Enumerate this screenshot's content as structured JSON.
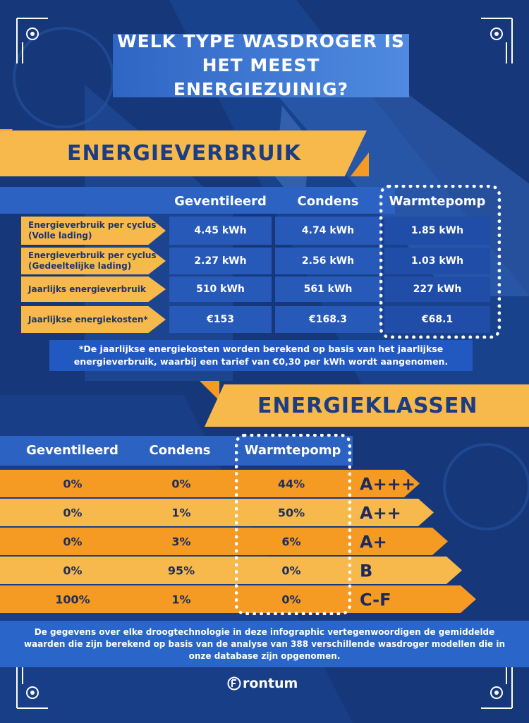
{
  "title": "Welk type wasdroger is het meest energiezuinig?",
  "section1": {
    "heading": "ENERGIEVERBRUIK",
    "columns": [
      "Geventileerd",
      "Condens",
      "Warmtepomp"
    ],
    "rows": [
      {
        "label1": "Energieverbruik per cyclus",
        "label2": "(Volle lading)",
        "values": [
          "4.45 kWh",
          "4.74 kWh",
          "1.85 kWh"
        ]
      },
      {
        "label1": "Energieverbruik per cyclus",
        "label2": "(Gedeeltelijke lading)",
        "values": [
          "2.27 kWh",
          "2.56 kWh",
          "1.03 kWh"
        ]
      },
      {
        "label1": "Jaarlijks energieverbruik",
        "label2": "",
        "values": [
          "510 kWh",
          "561 kWh",
          "227 kWh"
        ]
      },
      {
        "label1": "Jaarlijkse energiekosten*",
        "label2": "",
        "values": [
          "€153",
          "€168.3",
          "€68.1"
        ]
      }
    ],
    "note_line1": "*De jaarlijkse energiekosten worden berekend op basis van het jaarlijkse",
    "note_line2": "energieverbruik, waarbij een tarief van €0,30 per kWh wordt aangenomen."
  },
  "section2": {
    "heading": "ENERGIEKLASSEN",
    "columns": [
      "Geventileerd",
      "Condens",
      "Warmtepomp"
    ],
    "rows": [
      {
        "cls": "A+++",
        "values": [
          "0%",
          "0%",
          "44%"
        ]
      },
      {
        "cls": "A++",
        "values": [
          "0%",
          "1%",
          "50%"
        ]
      },
      {
        "cls": "A+",
        "values": [
          "0%",
          "3%",
          "6%"
        ]
      },
      {
        "cls": "B",
        "values": [
          "0%",
          "95%",
          "0%"
        ]
      },
      {
        "cls": "C-F",
        "values": [
          "100%",
          "1%",
          "0%"
        ]
      }
    ]
  },
  "footer": {
    "line1": "De gegevens over elke droogtechnologie in deze infographic vertegenwoordigen de gemiddelde",
    "line2": "waarden die zijn berekend op basis van de analyse van 388 verschillende wasdroger modellen die in",
    "line3": "onze database zijn opgenomen.",
    "brand": "rontum"
  },
  "chart_data": [
    {
      "type": "table",
      "title": "ENERGIEVERBRUIK",
      "categories": [
        "Energieverbruik per cyclus (Volle lading)",
        "Energieverbruik per cyclus (Gedeeltelijke lading)",
        "Jaarlijks energieverbruik",
        "Jaarlijkse energiekosten*"
      ],
      "series": [
        {
          "name": "Geventileerd",
          "values": [
            4.45,
            2.27,
            510,
            153
          ]
        },
        {
          "name": "Condens",
          "values": [
            4.74,
            2.56,
            561,
            168.3
          ]
        },
        {
          "name": "Warmtepomp",
          "values": [
            1.85,
            1.03,
            227,
            68.1
          ]
        }
      ]
    },
    {
      "type": "table",
      "title": "ENERGIEKLASSEN",
      "categories": [
        "A+++",
        "A++",
        "A+",
        "B",
        "C-F"
      ],
      "series": [
        {
          "name": "Geventileerd",
          "values": [
            0,
            0,
            0,
            0,
            100
          ]
        },
        {
          "name": "Condens",
          "values": [
            0,
            1,
            3,
            95,
            1
          ]
        },
        {
          "name": "Warmtepomp",
          "values": [
            44,
            50,
            6,
            0,
            0
          ]
        }
      ]
    }
  ],
  "colors": {
    "background": "#16387a",
    "orange": "#f59a23",
    "light_orange": "#f7b94b",
    "blue": "#2759b9",
    "dark_text": "#1c3c84"
  }
}
